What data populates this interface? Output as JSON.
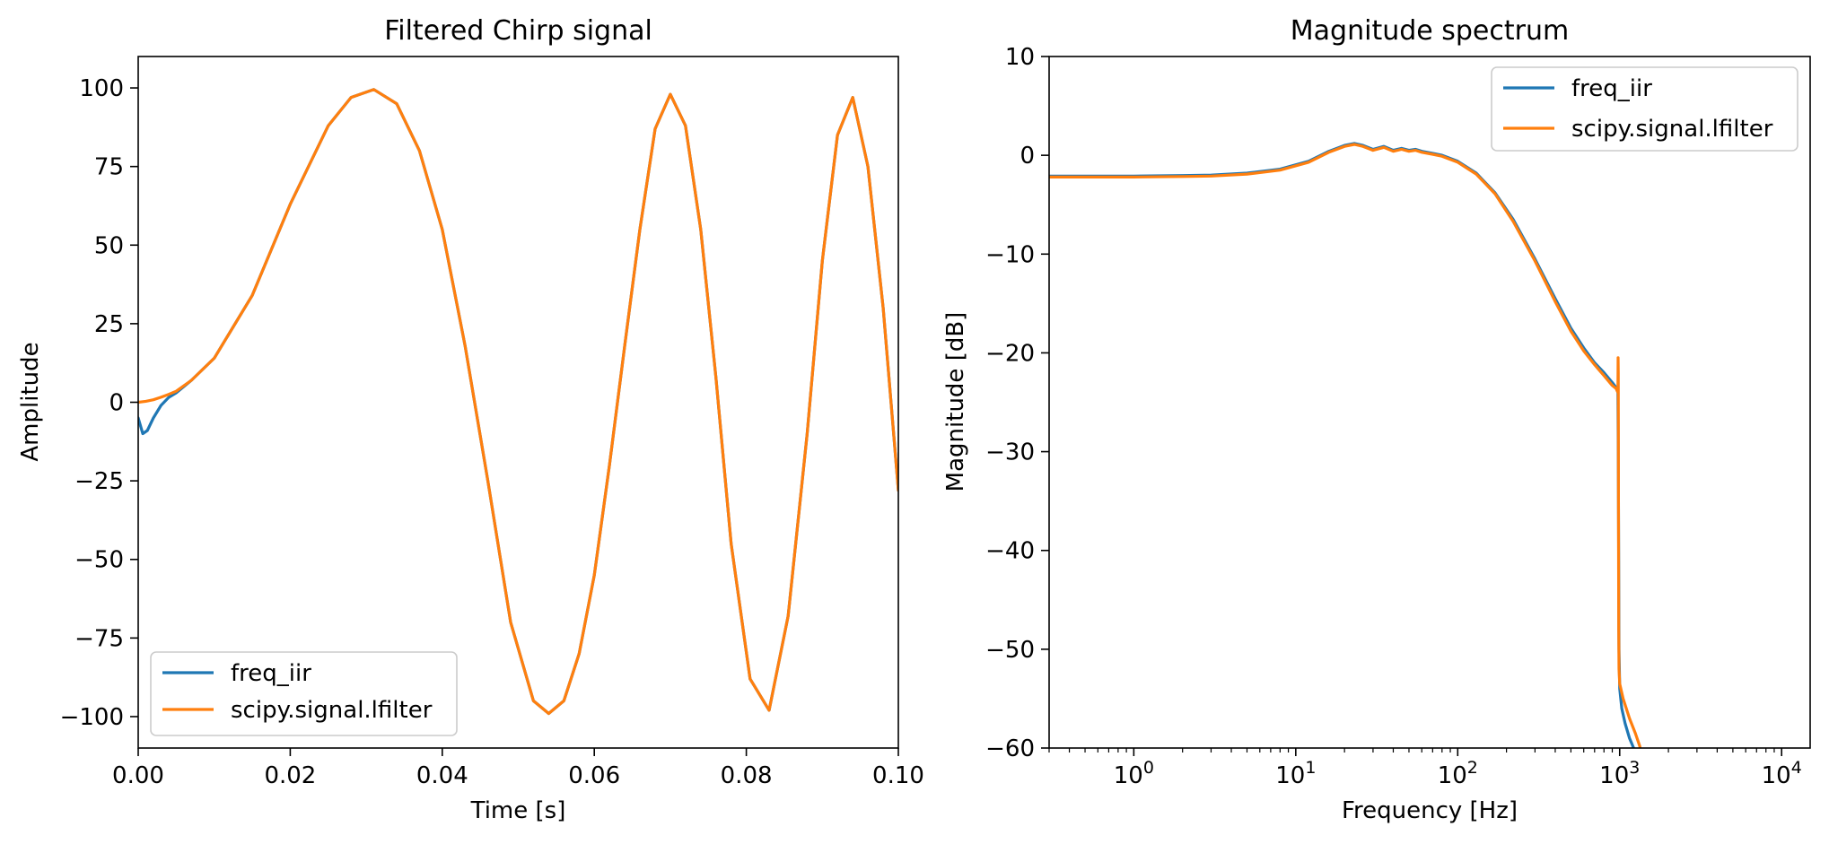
{
  "colors": {
    "freq_iir": "#1f77b4",
    "lfilter": "#ff7f0e"
  },
  "chart_data": [
    {
      "type": "line",
      "title": "Filtered Chirp signal",
      "xlabel": "Time [s]",
      "ylabel": "Amplitude",
      "xlim": [
        0,
        0.1
      ],
      "ylim": [
        -110,
        110
      ],
      "xticks": [
        0,
        0.02,
        0.04,
        0.06,
        0.08,
        0.1
      ],
      "xtick_labels": [
        "0.00",
        "0.02",
        "0.04",
        "0.06",
        "0.08",
        "0.10"
      ],
      "yticks": [
        -100,
        -75,
        -50,
        -25,
        0,
        25,
        50,
        75,
        100
      ],
      "ytick_labels": [
        "−100",
        "−75",
        "−50",
        "−25",
        "0",
        "25",
        "50",
        "75",
        "100"
      ],
      "legend_position": "lower-left",
      "series": [
        {
          "name": "freq_iir",
          "color": "#1f77b4",
          "x": [
            0,
            0.0006,
            0.0012,
            0.002,
            0.003,
            0.004,
            0.005,
            0.007,
            0.01,
            0.015,
            0.02,
            0.025,
            0.028,
            0.031,
            0.034,
            0.037,
            0.04,
            0.043,
            0.046,
            0.049,
            0.052,
            0.054,
            0.056,
            0.058,
            0.06,
            0.062,
            0.064,
            0.066,
            0.068,
            0.07,
            0.072,
            0.074,
            0.076,
            0.078,
            0.0805,
            0.083,
            0.0855,
            0.088,
            0.09,
            0.092,
            0.094,
            0.096,
            0.098,
            0.1
          ],
          "y": [
            -5,
            -10,
            -9,
            -5,
            -1,
            1.5,
            3,
            7,
            14,
            34,
            63,
            88,
            97,
            99.5,
            95,
            80,
            55,
            18,
            -25,
            -70,
            -95,
            -99,
            -95,
            -80,
            -55,
            -20,
            18,
            55,
            87,
            98,
            88,
            55,
            8,
            -45,
            -88,
            -98,
            -68,
            -10,
            45,
            85,
            97,
            75,
            30,
            -28
          ]
        },
        {
          "name": "scipy.signal.lfilter",
          "color": "#ff7f0e",
          "x": [
            0,
            0.001,
            0.002,
            0.003,
            0.004,
            0.005,
            0.007,
            0.01,
            0.015,
            0.02,
            0.025,
            0.028,
            0.031,
            0.034,
            0.037,
            0.04,
            0.043,
            0.046,
            0.049,
            0.052,
            0.054,
            0.056,
            0.058,
            0.06,
            0.062,
            0.064,
            0.066,
            0.068,
            0.07,
            0.072,
            0.074,
            0.076,
            0.078,
            0.0805,
            0.083,
            0.0855,
            0.088,
            0.09,
            0.092,
            0.094,
            0.096,
            0.098,
            0.1
          ],
          "y": [
            0,
            0.3,
            0.8,
            1.6,
            2.5,
            3.5,
            7,
            14,
            34,
            63,
            88,
            97,
            99.5,
            95,
            80,
            55,
            18,
            -25,
            -70,
            -95,
            -99,
            -95,
            -80,
            -55,
            -20,
            18,
            55,
            87,
            98,
            88,
            55,
            8,
            -45,
            -88,
            -98,
            -68,
            -10,
            45,
            85,
            97,
            75,
            30,
            -28
          ]
        }
      ]
    },
    {
      "type": "line",
      "title": "Magnitude spectrum",
      "xlabel": "Frequency [Hz]",
      "ylabel": "Magnitude [dB]",
      "xscale": "log",
      "xlim": [
        0.3,
        15000
      ],
      "ylim": [
        -60,
        10
      ],
      "xticks": [
        1,
        10,
        100,
        1000,
        10000
      ],
      "xtick_base": "10",
      "xtick_exponents": [
        "0",
        "1",
        "2",
        "3",
        "4"
      ],
      "yticks": [
        -60,
        -50,
        -40,
        -30,
        -20,
        -10,
        0,
        10
      ],
      "ytick_labels": [
        "−60",
        "−50",
        "−40",
        "−30",
        "−20",
        "−10",
        "0",
        "10"
      ],
      "legend_position": "upper-right",
      "series": [
        {
          "name": "freq_iir",
          "color": "#1f77b4",
          "x": [
            0.3,
            1,
            2,
            3,
            5,
            8,
            12,
            16,
            20,
            23,
            26,
            30,
            35,
            40,
            45,
            50,
            55,
            60,
            70,
            80,
            100,
            130,
            170,
            220,
            300,
            400,
            500,
            600,
            700,
            800,
            900,
            950,
            975,
            980,
            985,
            990,
            1000,
            1030,
            1080,
            1150,
            1220,
            1250
          ],
          "y": [
            -2.1,
            -2.1,
            -2.05,
            -2.0,
            -1.8,
            -1.4,
            -0.6,
            0.4,
            1.0,
            1.2,
            1.0,
            0.6,
            0.9,
            0.5,
            0.7,
            0.5,
            0.6,
            0.4,
            0.2,
            0.0,
            -0.6,
            -1.8,
            -3.8,
            -6.5,
            -10.5,
            -14.5,
            -17.5,
            -19.5,
            -21,
            -22,
            -23,
            -23.5,
            -24,
            -30,
            -40,
            -50,
            -54,
            -56,
            -57.5,
            -59,
            -60,
            -60.5
          ]
        },
        {
          "name": "scipy.signal.lfilter",
          "color": "#ff7f0e",
          "x": [
            0.3,
            1,
            2,
            3,
            5,
            8,
            12,
            16,
            20,
            23,
            26,
            30,
            35,
            40,
            45,
            50,
            55,
            60,
            70,
            80,
            100,
            130,
            170,
            220,
            300,
            400,
            500,
            600,
            700,
            800,
            900,
            950,
            975,
            978,
            980,
            983,
            986,
            990,
            1000,
            1050,
            1150,
            1250,
            1330,
            1360
          ],
          "y": [
            -2.2,
            -2.2,
            -2.15,
            -2.1,
            -1.9,
            -1.5,
            -0.7,
            0.3,
            0.9,
            1.1,
            0.9,
            0.5,
            0.8,
            0.4,
            0.6,
            0.4,
            0.5,
            0.3,
            0.1,
            -0.1,
            -0.7,
            -1.9,
            -3.9,
            -6.7,
            -10.7,
            -14.8,
            -17.8,
            -19.8,
            -21.2,
            -22.3,
            -23.3,
            -23.6,
            -24,
            -20.5,
            -22,
            -35,
            -48,
            -52,
            -53.5,
            -55,
            -57,
            -58.5,
            -59.8,
            -60.5
          ]
        }
      ]
    }
  ]
}
